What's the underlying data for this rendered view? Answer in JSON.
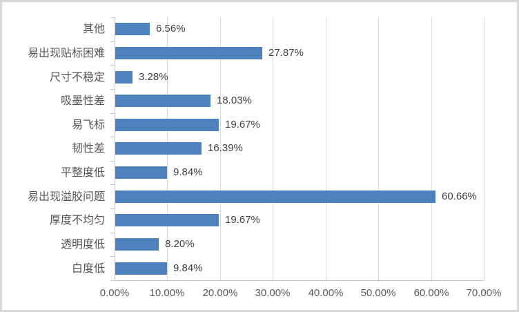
{
  "chart_data": {
    "type": "bar",
    "orientation": "horizontal",
    "title": "",
    "xlabel": "",
    "ylabel": "",
    "categories": [
      "其他",
      "易出现贴标困难",
      "尺寸不稳定",
      "吸墨性差",
      "易飞标",
      "韧性差",
      "平整度低",
      "易出现溢胶问题",
      "厚度不均匀",
      "透明度低",
      "白度低"
    ],
    "values": [
      6.56,
      27.87,
      3.28,
      18.03,
      19.67,
      16.39,
      9.84,
      60.66,
      19.67,
      8.2,
      9.84
    ],
    "data_labels": [
      "6.56%",
      "27.87%",
      "3.28%",
      "18.03%",
      "19.67%",
      "16.39%",
      "9.84%",
      "60.66%",
      "19.67%",
      "8.20%",
      "9.84%"
    ],
    "x_ticks": [
      "0.00%",
      "10.00%",
      "20.00%",
      "30.00%",
      "40.00%",
      "50.00%",
      "60.00%",
      "70.00%"
    ],
    "xlim": [
      0,
      70
    ],
    "grid": true,
    "legend": false,
    "bar_color": "#4F81BD",
    "gridline_color": "#D9D9D9",
    "axis_color": "#C6C6C6",
    "label_color": "#3F3F3F",
    "tick_label_color": "#595959",
    "frame_border_color": "#D7D7D7"
  }
}
